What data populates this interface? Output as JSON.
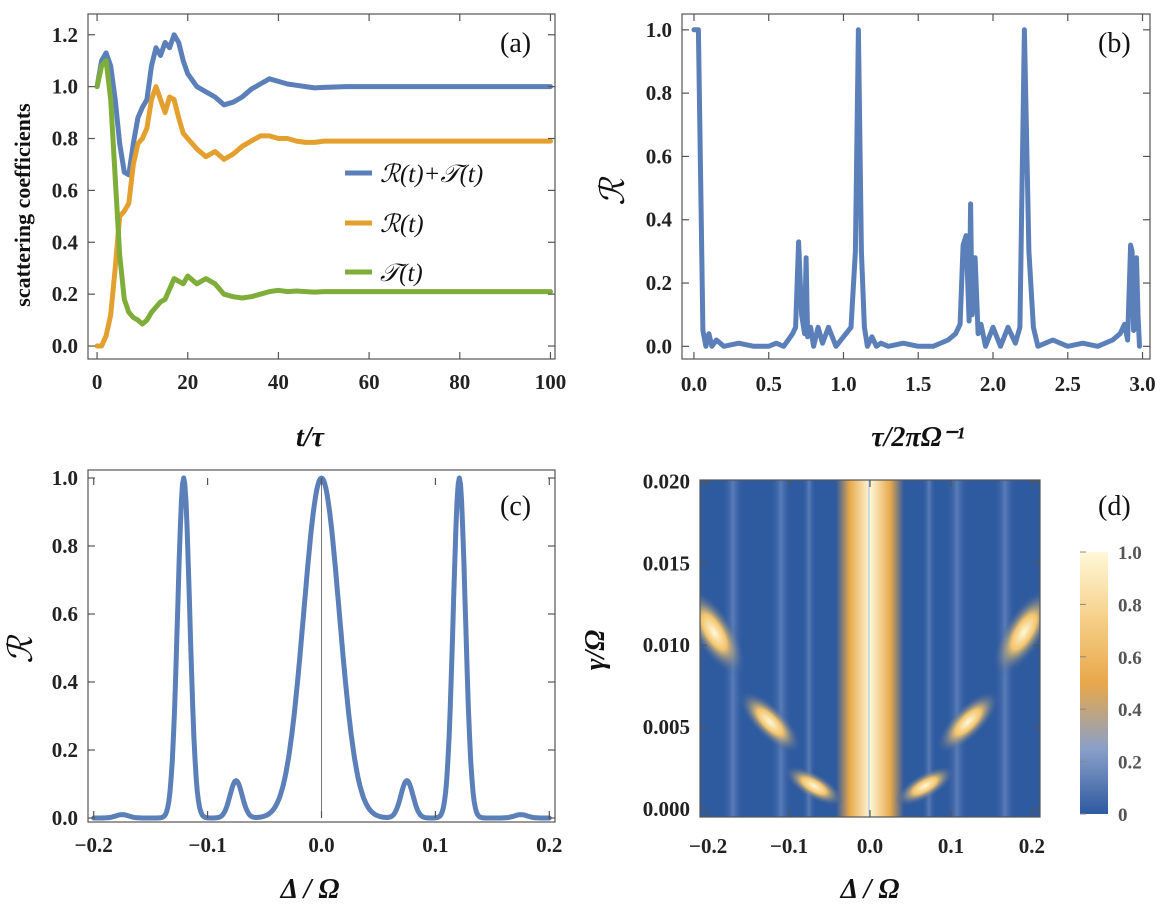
{
  "chart_data": [
    {
      "id": "a",
      "type": "line",
      "panel_label": "(a)",
      "xlabel": "t/τ",
      "ylabel": "scattering coefficients",
      "xlim": [
        -2,
        101
      ],
      "ylim": [
        -0.05,
        1.28
      ],
      "xticks": [
        "0",
        "20",
        "40",
        "60",
        "80",
        "100"
      ],
      "yticks": [
        "0.0",
        "0.2",
        "0.4",
        "0.6",
        "0.8",
        "1.0",
        "1.2"
      ],
      "legend_position": "right",
      "series": [
        {
          "name": "ℛ(t)+𝒯(t)",
          "color": "#5b7fb8",
          "x": [
            0,
            1,
            2,
            3,
            4,
            5,
            6,
            7,
            8,
            9,
            10,
            11,
            12,
            13,
            14,
            15,
            16,
            17,
            18,
            19,
            20,
            22,
            24,
            26,
            28,
            30,
            32,
            34,
            36,
            38,
            40,
            42,
            44,
            46,
            48,
            50,
            55,
            60,
            70,
            80,
            90,
            100
          ],
          "y": [
            1.0,
            1.1,
            1.13,
            1.08,
            0.95,
            0.78,
            0.67,
            0.66,
            0.78,
            0.88,
            0.92,
            0.95,
            1.08,
            1.15,
            1.12,
            1.17,
            1.15,
            1.2,
            1.17,
            1.1,
            1.05,
            1.0,
            0.98,
            0.96,
            0.93,
            0.94,
            0.96,
            0.99,
            1.01,
            1.03,
            1.02,
            1.01,
            1.005,
            1.0,
            0.995,
            0.997,
            1.0,
            1.0,
            1.0,
            1.0,
            1.0,
            1.0
          ]
        },
        {
          "name": "ℛ(t)",
          "color": "#e3a02e",
          "x": [
            0,
            1,
            2,
            3,
            4,
            5,
            6,
            7,
            8,
            9,
            10,
            11,
            12,
            13,
            14,
            15,
            16,
            17,
            18,
            19,
            20,
            22,
            24,
            26,
            28,
            30,
            32,
            34,
            36,
            38,
            40,
            42,
            44,
            46,
            48,
            50,
            55,
            60,
            70,
            80,
            90,
            100
          ],
          "y": [
            0.0,
            0.0,
            0.04,
            0.12,
            0.3,
            0.5,
            0.52,
            0.55,
            0.7,
            0.78,
            0.8,
            0.84,
            0.95,
            1.0,
            0.95,
            0.9,
            0.96,
            0.95,
            0.88,
            0.82,
            0.8,
            0.76,
            0.73,
            0.75,
            0.72,
            0.74,
            0.77,
            0.79,
            0.81,
            0.81,
            0.8,
            0.8,
            0.79,
            0.785,
            0.785,
            0.79,
            0.79,
            0.79,
            0.79,
            0.79,
            0.79,
            0.79
          ]
        },
        {
          "name": "𝒯(t)",
          "color": "#7fad3a",
          "x": [
            0,
            1,
            2,
            3,
            4,
            5,
            6,
            7,
            8,
            9,
            10,
            11,
            12,
            13,
            14,
            15,
            16,
            17,
            18,
            19,
            20,
            22,
            24,
            26,
            28,
            30,
            32,
            34,
            36,
            38,
            40,
            42,
            44,
            46,
            48,
            50,
            55,
            60,
            70,
            80,
            90,
            100
          ],
          "y": [
            1.0,
            1.08,
            1.1,
            0.95,
            0.65,
            0.35,
            0.18,
            0.13,
            0.11,
            0.1,
            0.085,
            0.1,
            0.13,
            0.15,
            0.17,
            0.18,
            0.22,
            0.26,
            0.25,
            0.24,
            0.27,
            0.24,
            0.26,
            0.24,
            0.2,
            0.19,
            0.185,
            0.19,
            0.2,
            0.21,
            0.215,
            0.21,
            0.212,
            0.21,
            0.208,
            0.21,
            0.21,
            0.21,
            0.21,
            0.21,
            0.21,
            0.21
          ]
        }
      ]
    },
    {
      "id": "b",
      "type": "line",
      "panel_label": "(b)",
      "xlabel": "τ/2πΩ⁻¹",
      "ylabel": "ℛ",
      "xlim": [
        -0.08,
        3.05
      ],
      "ylim": [
        -0.04,
        1.05
      ],
      "xticks": [
        "0.0",
        "0.5",
        "1.0",
        "1.5",
        "2.0",
        "2.5",
        "3.0"
      ],
      "yticks": [
        "0.0",
        "0.2",
        "0.4",
        "0.6",
        "0.8",
        "1.0"
      ],
      "series": [
        {
          "name": "ℛ",
          "color": "#5b7fb8",
          "x": [
            0,
            0.03,
            0.06,
            0.08,
            0.1,
            0.12,
            0.15,
            0.2,
            0.3,
            0.4,
            0.5,
            0.55,
            0.6,
            0.63,
            0.66,
            0.68,
            0.7,
            0.72,
            0.74,
            0.75,
            0.76,
            0.78,
            0.8,
            0.83,
            0.86,
            0.9,
            0.95,
            1.0,
            1.05,
            1.08,
            1.1,
            1.12,
            1.14,
            1.16,
            1.19,
            1.22,
            1.25,
            1.3,
            1.4,
            1.5,
            1.6,
            1.7,
            1.75,
            1.78,
            1.8,
            1.82,
            1.84,
            1.85,
            1.86,
            1.88,
            1.9,
            1.92,
            1.95,
            2.0,
            2.05,
            2.1,
            2.15,
            2.18,
            2.21,
            2.24,
            2.27,
            2.3,
            2.4,
            2.5,
            2.6,
            2.7,
            2.8,
            2.85,
            2.88,
            2.9,
            2.92,
            2.93,
            2.94,
            2.95,
            2.96,
            2.97,
            2.98
          ],
          "y": [
            1.0,
            1.0,
            0.05,
            0.0,
            0.04,
            0.0,
            0.02,
            0.0,
            0.01,
            0.0,
            0.0,
            0.01,
            0.0,
            0.02,
            0.04,
            0.06,
            0.33,
            0.1,
            0.04,
            0.28,
            0.03,
            0.06,
            0.0,
            0.06,
            0.01,
            0.06,
            0.0,
            0.03,
            0.06,
            0.3,
            1.0,
            0.3,
            0.06,
            0.0,
            0.03,
            0.0,
            0.01,
            0.0,
            0.01,
            0.0,
            0.0,
            0.02,
            0.04,
            0.07,
            0.32,
            0.35,
            0.08,
            0.45,
            0.1,
            0.28,
            0.04,
            0.07,
            0.0,
            0.06,
            0.0,
            0.06,
            0.01,
            0.06,
            1.0,
            0.3,
            0.06,
            0.0,
            0.02,
            0.0,
            0.01,
            0.0,
            0.02,
            0.04,
            0.07,
            0.02,
            0.32,
            0.3,
            0.05,
            0.06,
            0.28,
            0.1,
            0.0
          ]
        }
      ]
    },
    {
      "id": "c",
      "type": "line",
      "panel_label": "(c)",
      "xlabel": "Δ / Ω",
      "ylabel": "ℛ",
      "xlim": [
        -0.205,
        0.205
      ],
      "ylim": [
        0,
        1.0
      ],
      "xticks": [
        "−0.2",
        "−0.1",
        "0.0",
        "0.1",
        "0.2"
      ],
      "yticks": [
        "0.0",
        "0.2",
        "0.4",
        "0.6",
        "0.8",
        "1.0"
      ],
      "series": [
        {
          "name": "ℛ",
          "color": "#5b7fb8",
          "model": "sum of peaks",
          "peaks": [
            {
              "center": 0.0,
              "height": 1.0,
              "width": 0.022
            },
            {
              "center": -0.121,
              "height": 1.0,
              "width": 0.0075
            },
            {
              "center": 0.121,
              "height": 1.0,
              "width": 0.0075
            },
            {
              "center": -0.075,
              "height": 0.11,
              "width": 0.0075
            },
            {
              "center": 0.075,
              "height": 0.11,
              "width": 0.0075
            },
            {
              "center": -0.175,
              "height": 0.01,
              "width": 0.008
            },
            {
              "center": 0.175,
              "height": 0.01,
              "width": 0.008
            }
          ]
        }
      ]
    },
    {
      "id": "d",
      "type": "heatmap",
      "panel_label": "(d)",
      "xlabel": "Δ / Ω",
      "ylabel": "γ/Ω",
      "xlim": [
        -0.21,
        0.21
      ],
      "ylim": [
        -0.0005,
        0.0201
      ],
      "xticks": [
        "−0.2",
        "−0.1",
        "0.0",
        "0.1",
        "0.2"
      ],
      "yticks": [
        "0.000",
        "0.005",
        "0.010",
        "0.015",
        "0.020"
      ],
      "colorbar": {
        "min": 0,
        "max": 1.0,
        "ticks": [
          "0",
          "0.2",
          "0.4",
          "0.6",
          "0.8",
          "1.0"
        ],
        "colors": [
          "#2e5aa0",
          "#8aa0c8",
          "#e8a84a",
          "#f6d08a",
          "#fff8d8"
        ]
      }
    }
  ]
}
